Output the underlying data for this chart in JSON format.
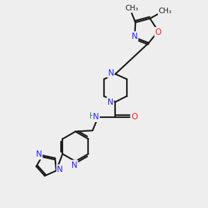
{
  "bg_color": "#eeeeee",
  "bond_color": "#1a1a1a",
  "N_color": "#2020ff",
  "O_color": "#ff2020",
  "H_color": "#208080",
  "line_width": 1.6,
  "font_size": 8.5,
  "figsize": [
    3.0,
    3.0
  ],
  "dpi": 100,
  "xlim": [
    0,
    10
  ],
  "ylim": [
    0,
    10
  ]
}
